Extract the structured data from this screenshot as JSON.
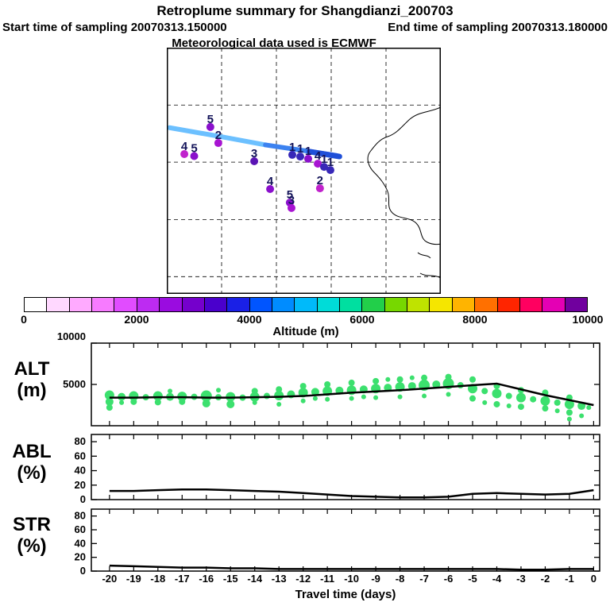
{
  "header": {
    "title": "Retroplume summary for Shangdianzi_200703",
    "start_label": "Start time of sampling 20070313.150000",
    "end_label": "End time of sampling 20070313.180000",
    "met_label": "Meteorological data used is ECMWF"
  },
  "colorbar": {
    "title": "Altitude (m)",
    "ticks": [
      "0",
      "2000",
      "4000",
      "6000",
      "8000",
      "10000"
    ],
    "cells": [
      "#ffffff",
      "#ffd8ff",
      "#ffaaff",
      "#f77bff",
      "#e14cff",
      "#bd2bf2",
      "#9a0ce0",
      "#7500cc",
      "#4a00cc",
      "#1a20e6",
      "#0055ff",
      "#008cff",
      "#00bafa",
      "#00dcd8",
      "#00dfa0",
      "#22cf4a",
      "#77d800",
      "#bfe300",
      "#f5e600",
      "#ffb400",
      "#ff7000",
      "#ff2500",
      "#ff0060",
      "#e400b4",
      "#70009e"
    ]
  },
  "map": {
    "grid_x": [
      0.2,
      0.4,
      0.6,
      0.8
    ],
    "grid_y": [
      0.233,
      0.465,
      0.698,
      0.93
    ],
    "trajectory": [
      {
        "color": "#6cc0ff",
        "width": 6,
        "pts": [
          [
            0.01,
            0.325
          ],
          [
            0.2,
            0.362
          ],
          [
            0.36,
            0.395
          ]
        ]
      },
      {
        "color": "#3c82f0",
        "width": 6,
        "pts": [
          [
            0.36,
            0.395
          ],
          [
            0.5,
            0.418
          ],
          [
            0.62,
            0.438
          ]
        ]
      },
      {
        "color": "#1f4fd8",
        "width": 7,
        "pts": [
          [
            0.52,
            0.422
          ],
          [
            0.63,
            0.442
          ]
        ]
      }
    ],
    "markers": [
      {
        "label": "5",
        "x": 0.159,
        "y": 0.29,
        "color": "#8a10cc"
      },
      {
        "label": "2",
        "x": 0.188,
        "y": 0.355,
        "color": "#a814d2"
      },
      {
        "label": "4",
        "x": 0.064,
        "y": 0.4,
        "color": "#c022cc"
      },
      {
        "label": "5",
        "x": 0.1,
        "y": 0.408,
        "color": "#8a10cc"
      },
      {
        "label": "3",
        "x": 0.319,
        "y": 0.429,
        "color": "#5a14b4"
      },
      {
        "label": "1",
        "x": 0.458,
        "y": 0.403,
        "color": "#3828b8"
      },
      {
        "label": "1",
        "x": 0.487,
        "y": 0.41,
        "color": "#3828b8"
      },
      {
        "label": "1",
        "x": 0.516,
        "y": 0.419,
        "color": "#8a10cc"
      },
      {
        "label": "4",
        "x": 0.551,
        "y": 0.439,
        "color": "#a814d2"
      },
      {
        "label": "1",
        "x": 0.574,
        "y": 0.452,
        "color": "#3828b8"
      },
      {
        "label": "1",
        "x": 0.597,
        "y": 0.465,
        "color": "#3828b8"
      },
      {
        "label": "4",
        "x": 0.377,
        "y": 0.542,
        "color": "#8a10cc"
      },
      {
        "label": "2",
        "x": 0.559,
        "y": 0.539,
        "color": "#c022cc"
      },
      {
        "label": "5",
        "x": 0.449,
        "y": 0.597,
        "color": "#8a10cc"
      },
      {
        "label": "3",
        "x": 0.455,
        "y": 0.619,
        "color": "#a814d2"
      }
    ],
    "number_color": "#14145a"
  },
  "xaxis": {
    "ticks": [
      -20,
      -19,
      -18,
      -17,
      -16,
      -15,
      -14,
      -13,
      -12,
      -11,
      -10,
      -9,
      -8,
      -7,
      -6,
      -5,
      -4,
      -3,
      -2,
      -1,
      0
    ],
    "label": "Travel time (days)"
  },
  "colors": {
    "green": "#3ce06e",
    "line": "#000000"
  },
  "chart_data": [
    {
      "type": "scatter",
      "name": "ALT",
      "label_lines": [
        "ALT",
        "(m)"
      ],
      "ylim": [
        0,
        10000
      ],
      "yticks": [
        5000,
        10000
      ],
      "x": [
        -20,
        -19,
        -18,
        -17,
        -16,
        -15,
        -14,
        -13,
        -12,
        -11,
        -10,
        -9,
        -8,
        -7,
        -6,
        -5,
        -4,
        -3,
        -2,
        -1,
        0
      ],
      "line": [
        3400,
        3400,
        3450,
        3450,
        3400,
        3400,
        3450,
        3500,
        3600,
        3800,
        4000,
        4150,
        4300,
        4500,
        4700,
        4900,
        5100,
        4400,
        3700,
        3100,
        2500
      ],
      "scatter": [
        [
          -20,
          3700,
          6
        ],
        [
          -20,
          2900,
          5
        ],
        [
          -20,
          2200,
          4
        ],
        [
          -19.5,
          3500,
          5
        ],
        [
          -19.5,
          2800,
          3
        ],
        [
          -19,
          3600,
          6
        ],
        [
          -19,
          2900,
          4
        ],
        [
          -18.5,
          3450,
          4
        ],
        [
          -18,
          3600,
          6
        ],
        [
          -18,
          2850,
          4
        ],
        [
          -17.5,
          3500,
          5
        ],
        [
          -17.5,
          4200,
          3
        ],
        [
          -17,
          3550,
          6
        ],
        [
          -17,
          2900,
          4
        ],
        [
          -16.5,
          3500,
          4
        ],
        [
          -16,
          3600,
          7
        ],
        [
          -16,
          2700,
          5
        ],
        [
          -15.5,
          3450,
          4
        ],
        [
          -15.5,
          4300,
          3
        ],
        [
          -15,
          3500,
          6
        ],
        [
          -15,
          2600,
          5
        ],
        [
          -14.5,
          3400,
          4
        ],
        [
          -14,
          3500,
          6
        ],
        [
          -14,
          4200,
          4
        ],
        [
          -14,
          2800,
          3
        ],
        [
          -13.5,
          3600,
          4
        ],
        [
          -13,
          3650,
          6
        ],
        [
          -13,
          4400,
          4
        ],
        [
          -13,
          2600,
          3
        ],
        [
          -12.5,
          3800,
          5
        ],
        [
          -12,
          4000,
          6
        ],
        [
          -12,
          4800,
          4
        ],
        [
          -12,
          3000,
          3
        ],
        [
          -11.5,
          4100,
          5
        ],
        [
          -11.5,
          3300,
          3
        ],
        [
          -11,
          4200,
          6
        ],
        [
          -11,
          5000,
          4
        ],
        [
          -11,
          3200,
          3
        ],
        [
          -10.5,
          4250,
          5
        ],
        [
          -10,
          4300,
          6
        ],
        [
          -10,
          5200,
          4
        ],
        [
          -10,
          3300,
          3
        ],
        [
          -9.5,
          4400,
          5
        ],
        [
          -9.5,
          3500,
          3
        ],
        [
          -9,
          4500,
          6
        ],
        [
          -9,
          5400,
          4
        ],
        [
          -9,
          3400,
          3
        ],
        [
          -8.5,
          4600,
          5
        ],
        [
          -8.5,
          5600,
          3
        ],
        [
          -8,
          4700,
          6
        ],
        [
          -8,
          5600,
          4
        ],
        [
          -8,
          3500,
          3
        ],
        [
          -7.5,
          4800,
          5
        ],
        [
          -7.5,
          5800,
          3
        ],
        [
          -7,
          4900,
          7
        ],
        [
          -7,
          5800,
          4
        ],
        [
          -7,
          3600,
          3
        ],
        [
          -6.5,
          5000,
          5
        ],
        [
          -6,
          5100,
          7
        ],
        [
          -6,
          5900,
          4
        ],
        [
          -6,
          3800,
          3
        ],
        [
          -5.5,
          4900,
          4
        ],
        [
          -5,
          4500,
          6
        ],
        [
          -5,
          5600,
          4
        ],
        [
          -5,
          3300,
          4
        ],
        [
          -4.5,
          4200,
          4
        ],
        [
          -4.5,
          2800,
          3
        ],
        [
          -4,
          3900,
          6
        ],
        [
          -4,
          4800,
          4
        ],
        [
          -4,
          2600,
          4
        ],
        [
          -3.5,
          3600,
          4
        ],
        [
          -3.5,
          2400,
          3
        ],
        [
          -3,
          3400,
          6
        ],
        [
          -3,
          4300,
          4
        ],
        [
          -3,
          2300,
          4
        ],
        [
          -2.5,
          3200,
          4
        ],
        [
          -2,
          3000,
          6
        ],
        [
          -2,
          4000,
          4
        ],
        [
          -2,
          2100,
          4
        ],
        [
          -1.5,
          2800,
          4
        ],
        [
          -1.5,
          1800,
          3
        ],
        [
          -1,
          2600,
          6
        ],
        [
          -1,
          3400,
          4
        ],
        [
          -1,
          1600,
          4
        ],
        [
          -1,
          800,
          3
        ],
        [
          -0.5,
          2400,
          5
        ],
        [
          -0.5,
          1200,
          3
        ],
        [
          -0.2,
          2200,
          3
        ]
      ]
    },
    {
      "type": "line",
      "name": "ABL",
      "label_lines": [
        "ABL",
        "(%)"
      ],
      "ylim": [
        0,
        90
      ],
      "yticks": [
        0,
        20,
        40,
        60,
        80
      ],
      "x": [
        -20,
        -19,
        -18,
        -17,
        -16,
        -15,
        -14,
        -13,
        -12,
        -11,
        -10,
        -9,
        -8,
        -7,
        -6,
        -5,
        -4,
        -3,
        -2,
        -1,
        0
      ],
      "line": [
        12,
        12,
        13,
        14,
        14,
        13,
        12,
        11,
        9,
        7,
        5,
        4,
        3,
        3,
        4,
        8,
        9,
        8,
        7,
        8,
        13
      ]
    },
    {
      "type": "line",
      "name": "STR",
      "label_lines": [
        "STR",
        "(%)"
      ],
      "ylim": [
        0,
        90
      ],
      "yticks": [
        0,
        20,
        40,
        60,
        80
      ],
      "x": [
        -20,
        -19,
        -18,
        -17,
        -16,
        -15,
        -14,
        -13,
        -12,
        -11,
        -10,
        -9,
        -8,
        -7,
        -6,
        -5,
        -4,
        -3,
        -2,
        -1,
        0
      ],
      "line": [
        8,
        7,
        6,
        5,
        5,
        4,
        4,
        3,
        3,
        3,
        3,
        3,
        3,
        3,
        3,
        3,
        3,
        2,
        2,
        3,
        3
      ]
    }
  ]
}
